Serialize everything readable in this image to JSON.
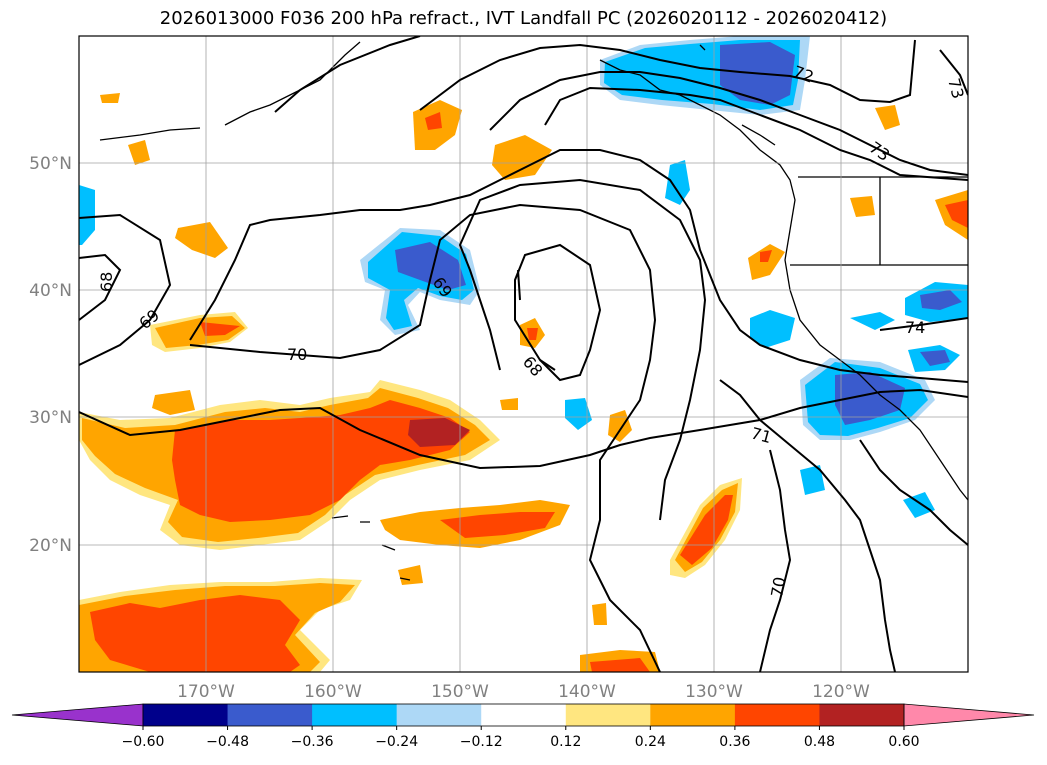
{
  "title": "2026013000 F036 200 hPa refract., IVT Landfall PC (2026020112 - 2026020412)",
  "map": {
    "lat_labels": [
      "50°N",
      "40°N",
      "30°N",
      "20°N"
    ],
    "lon_labels": [
      "170°W",
      "160°W",
      "150°W",
      "140°W",
      "130°W",
      "120°W"
    ]
  },
  "contour_labels": [
    "72",
    "73",
    "73",
    "69",
    "68",
    "69",
    "70",
    "68",
    "71",
    "70",
    "74"
  ],
  "colorbar": {
    "colors": [
      "#9932cc",
      "#00008b",
      "#3a5bcd",
      "#00bfff",
      "#add8f6",
      "#ffffff",
      "#ffe680",
      "#ffa500",
      "#ff4500",
      "#b22222",
      "#ff88aa",
      "#ff88aa"
    ],
    "tick_labels": [
      "−0.60",
      "−0.48",
      "−0.36",
      "−0.24",
      "−0.12",
      "0.12",
      "0.24",
      "0.36",
      "0.48",
      "0.60"
    ]
  },
  "chart_data": {
    "type": "heatmap",
    "title": "2026013000 F036 200 hPa refract., IVT Landfall PC (2026020112 - 2026020412)",
    "lon_range": [
      -180,
      -110
    ],
    "lat_range": [
      10,
      60
    ],
    "lon_ticks": [
      -170,
      -160,
      -150,
      -140,
      -130,
      -120
    ],
    "lat_ticks": [
      20,
      30,
      40,
      50
    ],
    "contour_levels": [
      68,
      69,
      70,
      71,
      72,
      73,
      74
    ],
    "colorbar_bounds": [
      -0.6,
      -0.48,
      -0.36,
      -0.24,
      -0.12,
      0.12,
      0.24,
      0.36,
      0.48,
      0.6
    ],
    "colorbar_extend": "both"
  }
}
